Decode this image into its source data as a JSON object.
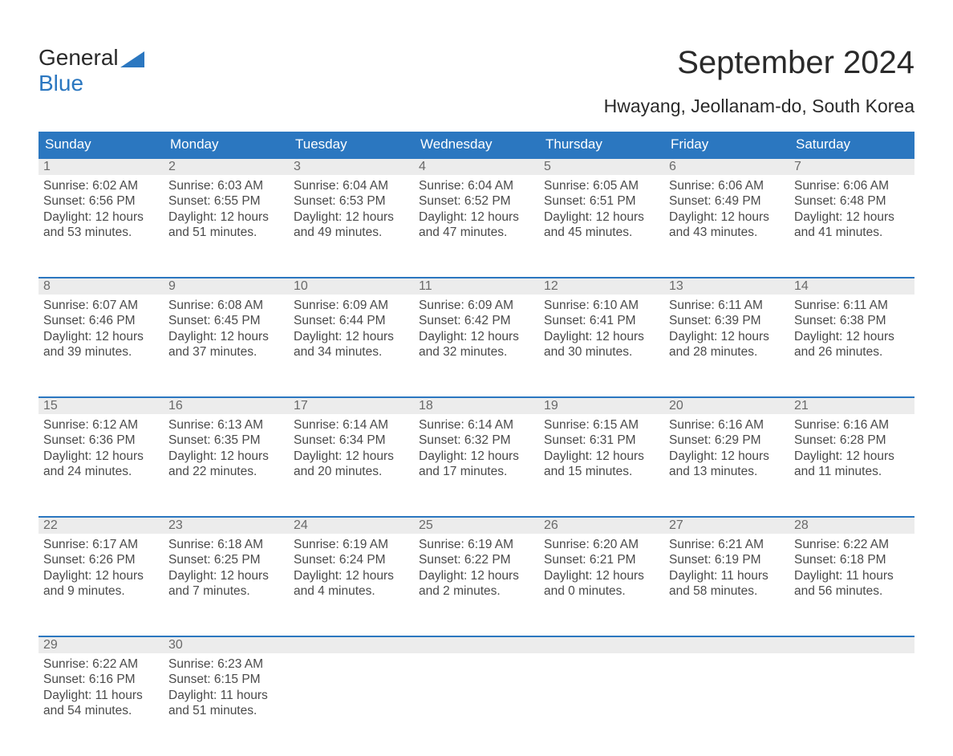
{
  "brand": {
    "line1": "General",
    "line2": "Blue"
  },
  "title": "September 2024",
  "location": "Hwayang, Jeollanam-do, South Korea",
  "colors": {
    "header_bg": "#2b77c0",
    "header_text": "#ffffff",
    "daynum_bg": "#ececec",
    "daynum_border": "#2b77c0",
    "body_text": "#4a4a4a",
    "title_text": "#2a2a2a",
    "page_bg": "#ffffff"
  },
  "fonts": {
    "body_pt": 15.5,
    "title_pt": 40,
    "location_pt": 23,
    "header_pt": 17
  },
  "weekdays": [
    "Sunday",
    "Monday",
    "Tuesday",
    "Wednesday",
    "Thursday",
    "Friday",
    "Saturday"
  ],
  "layout": {
    "cols": 7,
    "rows": 5,
    "first_weekday_index": 0,
    "days_in_month": 30
  },
  "days": [
    {
      "n": 1,
      "sunrise": "Sunrise: 6:02 AM",
      "sunset": "Sunset: 6:56 PM",
      "dl1": "Daylight: 12 hours",
      "dl2": "and 53 minutes."
    },
    {
      "n": 2,
      "sunrise": "Sunrise: 6:03 AM",
      "sunset": "Sunset: 6:55 PM",
      "dl1": "Daylight: 12 hours",
      "dl2": "and 51 minutes."
    },
    {
      "n": 3,
      "sunrise": "Sunrise: 6:04 AM",
      "sunset": "Sunset: 6:53 PM",
      "dl1": "Daylight: 12 hours",
      "dl2": "and 49 minutes."
    },
    {
      "n": 4,
      "sunrise": "Sunrise: 6:04 AM",
      "sunset": "Sunset: 6:52 PM",
      "dl1": "Daylight: 12 hours",
      "dl2": "and 47 minutes."
    },
    {
      "n": 5,
      "sunrise": "Sunrise: 6:05 AM",
      "sunset": "Sunset: 6:51 PM",
      "dl1": "Daylight: 12 hours",
      "dl2": "and 45 minutes."
    },
    {
      "n": 6,
      "sunrise": "Sunrise: 6:06 AM",
      "sunset": "Sunset: 6:49 PM",
      "dl1": "Daylight: 12 hours",
      "dl2": "and 43 minutes."
    },
    {
      "n": 7,
      "sunrise": "Sunrise: 6:06 AM",
      "sunset": "Sunset: 6:48 PM",
      "dl1": "Daylight: 12 hours",
      "dl2": "and 41 minutes."
    },
    {
      "n": 8,
      "sunrise": "Sunrise: 6:07 AM",
      "sunset": "Sunset: 6:46 PM",
      "dl1": "Daylight: 12 hours",
      "dl2": "and 39 minutes."
    },
    {
      "n": 9,
      "sunrise": "Sunrise: 6:08 AM",
      "sunset": "Sunset: 6:45 PM",
      "dl1": "Daylight: 12 hours",
      "dl2": "and 37 minutes."
    },
    {
      "n": 10,
      "sunrise": "Sunrise: 6:09 AM",
      "sunset": "Sunset: 6:44 PM",
      "dl1": "Daylight: 12 hours",
      "dl2": "and 34 minutes."
    },
    {
      "n": 11,
      "sunrise": "Sunrise: 6:09 AM",
      "sunset": "Sunset: 6:42 PM",
      "dl1": "Daylight: 12 hours",
      "dl2": "and 32 minutes."
    },
    {
      "n": 12,
      "sunrise": "Sunrise: 6:10 AM",
      "sunset": "Sunset: 6:41 PM",
      "dl1": "Daylight: 12 hours",
      "dl2": "and 30 minutes."
    },
    {
      "n": 13,
      "sunrise": "Sunrise: 6:11 AM",
      "sunset": "Sunset: 6:39 PM",
      "dl1": "Daylight: 12 hours",
      "dl2": "and 28 minutes."
    },
    {
      "n": 14,
      "sunrise": "Sunrise: 6:11 AM",
      "sunset": "Sunset: 6:38 PM",
      "dl1": "Daylight: 12 hours",
      "dl2": "and 26 minutes."
    },
    {
      "n": 15,
      "sunrise": "Sunrise: 6:12 AM",
      "sunset": "Sunset: 6:36 PM",
      "dl1": "Daylight: 12 hours",
      "dl2": "and 24 minutes."
    },
    {
      "n": 16,
      "sunrise": "Sunrise: 6:13 AM",
      "sunset": "Sunset: 6:35 PM",
      "dl1": "Daylight: 12 hours",
      "dl2": "and 22 minutes."
    },
    {
      "n": 17,
      "sunrise": "Sunrise: 6:14 AM",
      "sunset": "Sunset: 6:34 PM",
      "dl1": "Daylight: 12 hours",
      "dl2": "and 20 minutes."
    },
    {
      "n": 18,
      "sunrise": "Sunrise: 6:14 AM",
      "sunset": "Sunset: 6:32 PM",
      "dl1": "Daylight: 12 hours",
      "dl2": "and 17 minutes."
    },
    {
      "n": 19,
      "sunrise": "Sunrise: 6:15 AM",
      "sunset": "Sunset: 6:31 PM",
      "dl1": "Daylight: 12 hours",
      "dl2": "and 15 minutes."
    },
    {
      "n": 20,
      "sunrise": "Sunrise: 6:16 AM",
      "sunset": "Sunset: 6:29 PM",
      "dl1": "Daylight: 12 hours",
      "dl2": "and 13 minutes."
    },
    {
      "n": 21,
      "sunrise": "Sunrise: 6:16 AM",
      "sunset": "Sunset: 6:28 PM",
      "dl1": "Daylight: 12 hours",
      "dl2": "and 11 minutes."
    },
    {
      "n": 22,
      "sunrise": "Sunrise: 6:17 AM",
      "sunset": "Sunset: 6:26 PM",
      "dl1": "Daylight: 12 hours",
      "dl2": "and 9 minutes."
    },
    {
      "n": 23,
      "sunrise": "Sunrise: 6:18 AM",
      "sunset": "Sunset: 6:25 PM",
      "dl1": "Daylight: 12 hours",
      "dl2": "and 7 minutes."
    },
    {
      "n": 24,
      "sunrise": "Sunrise: 6:19 AM",
      "sunset": "Sunset: 6:24 PM",
      "dl1": "Daylight: 12 hours",
      "dl2": "and 4 minutes."
    },
    {
      "n": 25,
      "sunrise": "Sunrise: 6:19 AM",
      "sunset": "Sunset: 6:22 PM",
      "dl1": "Daylight: 12 hours",
      "dl2": "and 2 minutes."
    },
    {
      "n": 26,
      "sunrise": "Sunrise: 6:20 AM",
      "sunset": "Sunset: 6:21 PM",
      "dl1": "Daylight: 12 hours",
      "dl2": "and 0 minutes."
    },
    {
      "n": 27,
      "sunrise": "Sunrise: 6:21 AM",
      "sunset": "Sunset: 6:19 PM",
      "dl1": "Daylight: 11 hours",
      "dl2": "and 58 minutes."
    },
    {
      "n": 28,
      "sunrise": "Sunrise: 6:22 AM",
      "sunset": "Sunset: 6:18 PM",
      "dl1": "Daylight: 11 hours",
      "dl2": "and 56 minutes."
    },
    {
      "n": 29,
      "sunrise": "Sunrise: 6:22 AM",
      "sunset": "Sunset: 6:16 PM",
      "dl1": "Daylight: 11 hours",
      "dl2": "and 54 minutes."
    },
    {
      "n": 30,
      "sunrise": "Sunrise: 6:23 AM",
      "sunset": "Sunset: 6:15 PM",
      "dl1": "Daylight: 11 hours",
      "dl2": "and 51 minutes."
    }
  ]
}
